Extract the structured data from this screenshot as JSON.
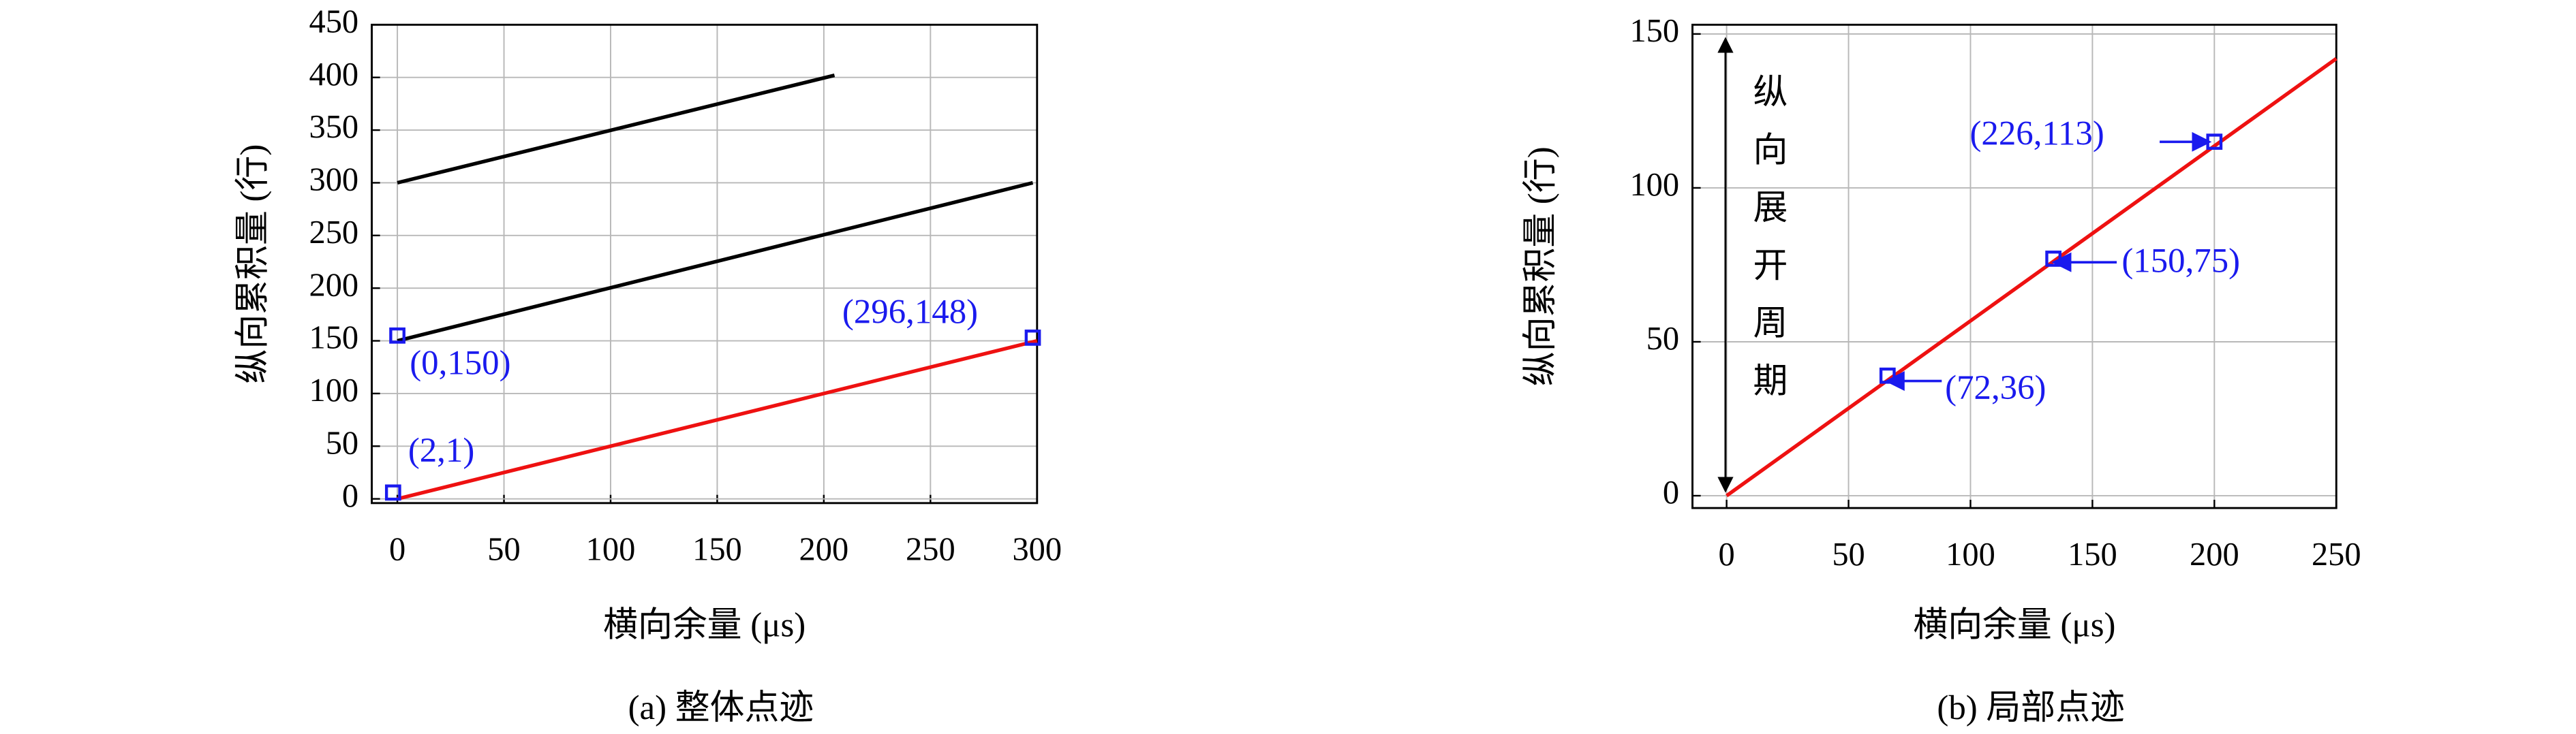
{
  "chart_data": [
    {
      "type": "line",
      "subtitle": "(a) 整体点迹",
      "xlabel": "横向余量 (μs)",
      "ylabel": "纵向累积量 (行)",
      "xlim": [
        -12,
        300
      ],
      "ylim": [
        -4,
        450
      ],
      "xticks": [
        0,
        50,
        100,
        150,
        200,
        250,
        300
      ],
      "yticks": [
        0,
        50,
        100,
        150,
        200,
        250,
        300,
        350,
        400,
        450
      ],
      "grid": true,
      "series": [
        {
          "color": "#000000",
          "x": [
            0,
            205
          ],
          "values": [
            300,
            402
          ]
        },
        {
          "color": "#000000",
          "x": [
            0,
            298
          ],
          "values": [
            150,
            300
          ]
        },
        {
          "color": "#ee1111",
          "x": [
            0,
            300
          ],
          "values": [
            0,
            150
          ]
        }
      ],
      "points": {
        "color": "#1a1aee",
        "x": [
          -2,
          0,
          298
        ],
        "values": [
          6,
          155,
          153
        ]
      },
      "annotations": [
        "(2,1)",
        "(0,150)",
        "(296,148)"
      ]
    },
    {
      "type": "line",
      "subtitle": "(b) 局部点迹",
      "xlabel": "横向余量 (μs)",
      "ylabel": "纵向累积量 (行)",
      "xlim": [
        -14,
        250
      ],
      "ylim": [
        -4,
        153
      ],
      "xticks": [
        0,
        50,
        100,
        150,
        200,
        250
      ],
      "yticks": [
        0,
        50,
        100,
        150
      ],
      "grid": true,
      "series": [
        {
          "color": "#ee1111",
          "x": [
            0,
            250
          ],
          "values": [
            0,
            142
          ]
        }
      ],
      "points": {
        "color": "#1a1aee",
        "x": [
          66,
          134,
          200
        ],
        "values": [
          39,
          77,
          115
        ]
      },
      "annotations": [
        "(72,36)",
        "(150,75)",
        "(226,113)"
      ],
      "span_label": "纵向展开周期"
    }
  ]
}
